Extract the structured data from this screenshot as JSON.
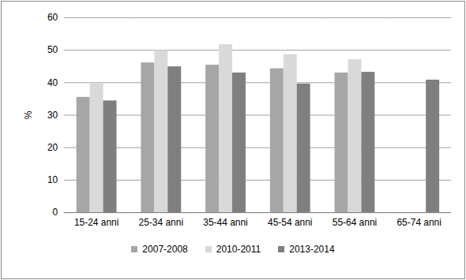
{
  "chart_data": {
    "type": "bar",
    "categories": [
      "15-24 anni",
      "25-34 anni",
      "35-44 anni",
      "45-54 anni",
      "55-64 anni",
      "65-74 anni"
    ],
    "series": [
      {
        "name": "2007-2008",
        "color": "#a6a6a6",
        "values": [
          35.5,
          46.1,
          45.4,
          44.3,
          43.0,
          null
        ]
      },
      {
        "name": "2010-2011",
        "color": "#d9d9d9",
        "values": [
          39.7,
          49.9,
          51.7,
          48.6,
          47.1,
          null
        ]
      },
      {
        "name": "2013-2014",
        "color": "#7f7f7f",
        "values": [
          34.4,
          44.9,
          43.0,
          39.6,
          43.2,
          40.8
        ]
      }
    ],
    "y_label": "%",
    "ylim": [
      0,
      60
    ],
    "yticks": [
      0,
      10,
      20,
      30,
      40,
      50,
      60
    ],
    "grid": true,
    "legend": "bottom"
  }
}
